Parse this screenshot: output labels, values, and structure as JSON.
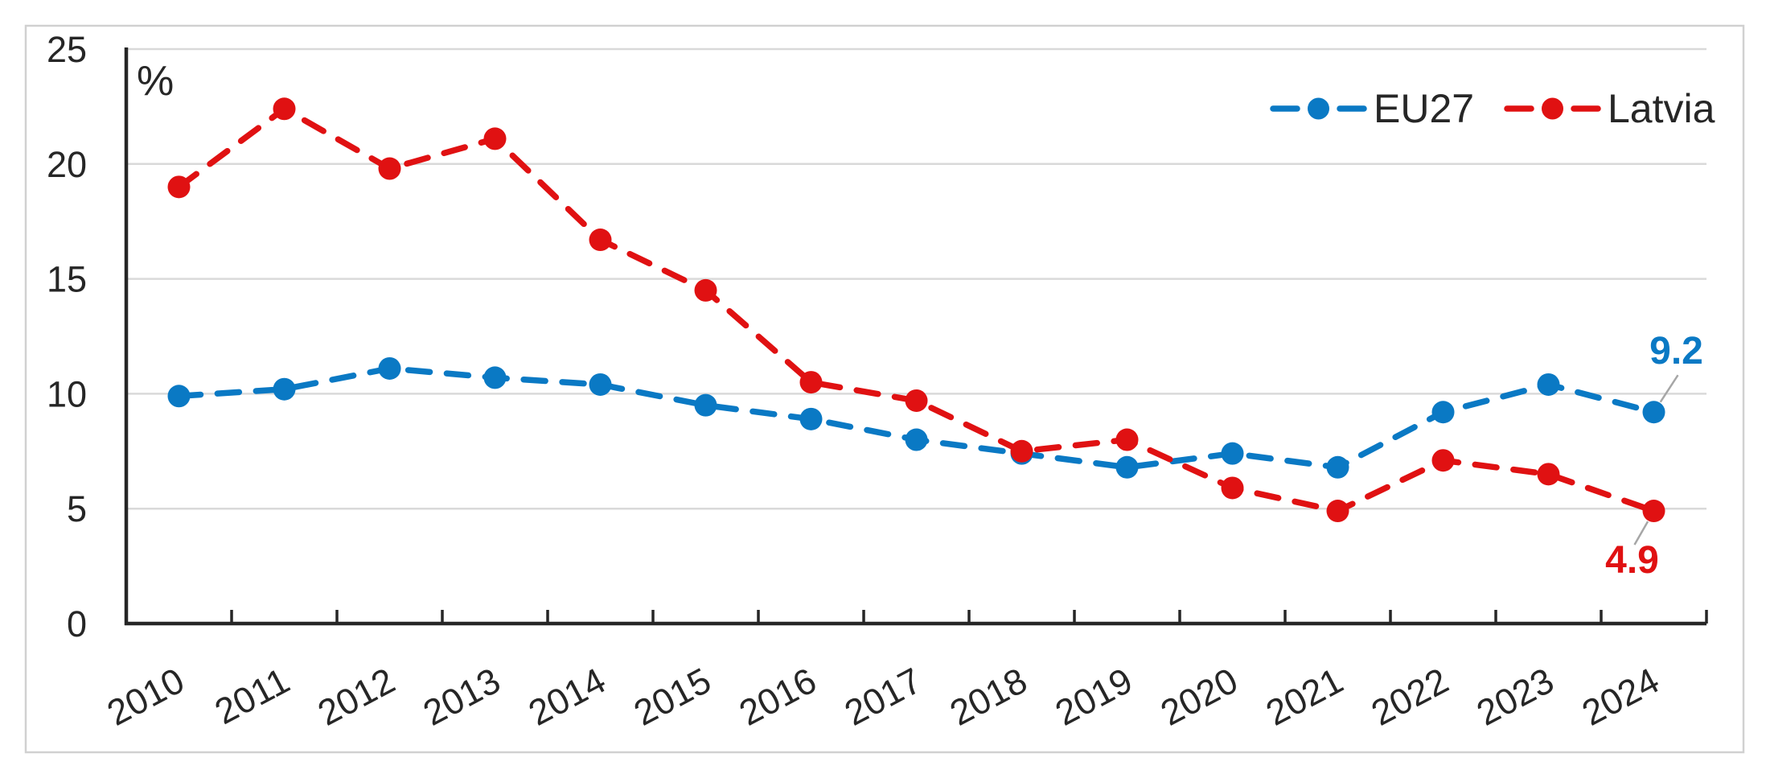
{
  "chart_data": {
    "type": "line",
    "title": "",
    "xlabel": "",
    "ylabel": "%",
    "y_label": "%",
    "categories": [
      "2010",
      "2011",
      "2012",
      "2013",
      "2014",
      "2015",
      "2016",
      "2017",
      "2018",
      "2019",
      "2020",
      "2021",
      "2022",
      "2023",
      "2024"
    ],
    "series": [
      {
        "name": "EU27",
        "color": "#0a79c4",
        "values": [
          9.9,
          10.2,
          11.1,
          10.7,
          10.4,
          9.5,
          8.9,
          8.0,
          7.4,
          6.8,
          7.4,
          6.8,
          9.2,
          10.4,
          9.2
        ]
      },
      {
        "name": "Latvia",
        "color": "#e01112",
        "values": [
          19.0,
          22.4,
          19.8,
          21.1,
          16.7,
          14.5,
          10.5,
          9.7,
          7.5,
          8.0,
          5.9,
          4.9,
          7.1,
          6.5,
          4.9
        ]
      }
    ],
    "ylim": [
      0,
      25
    ],
    "yticks": [
      0,
      5,
      10,
      15,
      20,
      25
    ],
    "grid": true,
    "line_style": "dashed",
    "legend_position": "top-right",
    "annotations": [
      {
        "series": "EU27",
        "category": "2024",
        "text": "9.2"
      },
      {
        "series": "Latvia",
        "category": "2024",
        "text": "4.9"
      }
    ]
  },
  "style_colors": {
    "gridline": "#d9d9d9",
    "axis": "#262626",
    "tick_text": "#262626",
    "border": "#d1d1d1",
    "leader_line": "#a6a6a6",
    "background": "#ffffff"
  }
}
